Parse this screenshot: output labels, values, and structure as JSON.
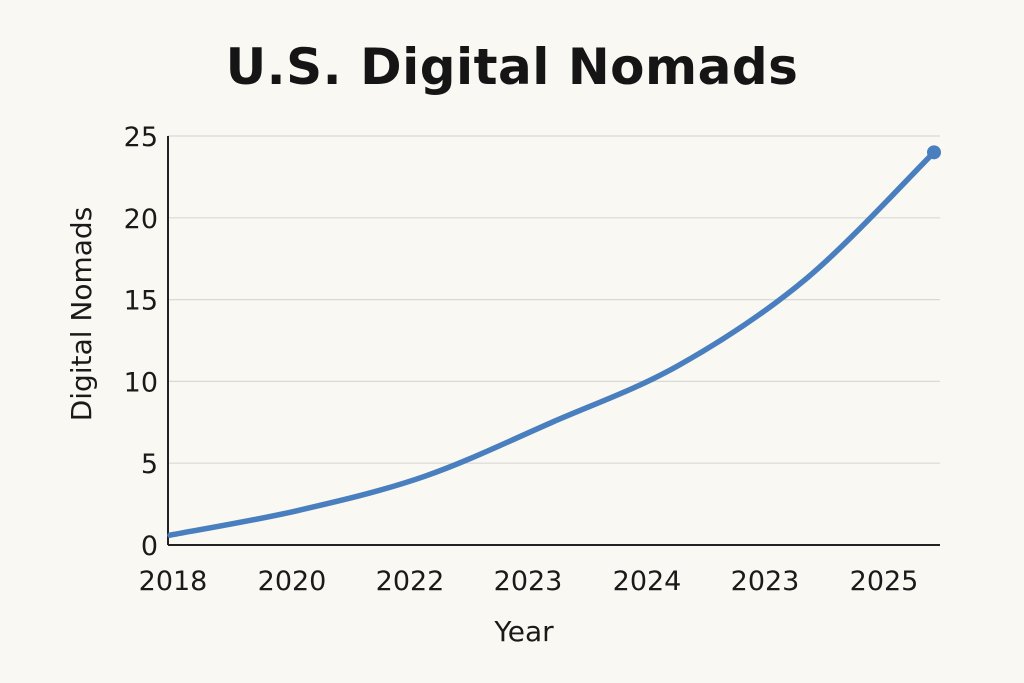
{
  "chart_data": {
    "type": "line",
    "title": "U.S. Digital Nomads",
    "xlabel": "Year",
    "ylabel": "Digital Nomads",
    "categories": [
      "2018",
      "2020",
      "2022",
      "2023",
      "2024",
      "2023",
      "2025"
    ],
    "series": [
      {
        "values": [
          0.6,
          2.1,
          4.2,
          7.5,
          11.0,
          16.3,
          24.0
        ],
        "color": "#4a7fbf"
      }
    ],
    "y_ticks": [
      0,
      5,
      10,
      15,
      20,
      25
    ],
    "ylim": [
      0,
      25
    ],
    "grid": "horizontal",
    "end_marker": true,
    "colors": {
      "line": "#4a7fbf",
      "grid": "#d9d9d6",
      "axis": "#222222",
      "background": "#faf8f3"
    }
  }
}
